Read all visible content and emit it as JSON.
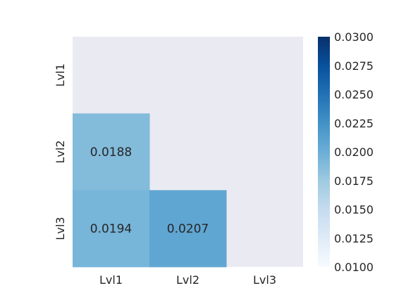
{
  "chart_data": {
    "type": "heatmap",
    "x_categories": [
      "Lvl1",
      "Lvl2",
      "Lvl3"
    ],
    "y_categories": [
      "Lvl1",
      "Lvl2",
      "Lvl3"
    ],
    "values": [
      [
        null,
        null,
        null
      ],
      [
        0.0188,
        null,
        null
      ],
      [
        0.0194,
        0.0207,
        null
      ]
    ],
    "cell_labels": [
      [
        null,
        null,
        null
      ],
      [
        "0.0188",
        null,
        null
      ],
      [
        "0.0194",
        "0.0207",
        null
      ]
    ],
    "mask": "upper triangle including diagonal",
    "colorbar": {
      "range": [
        0.01,
        0.03
      ],
      "tick_labels": [
        "0.0100",
        "0.0125",
        "0.0150",
        "0.0175",
        "0.0200",
        "0.0225",
        "0.0250",
        "0.0275",
        "0.0300"
      ],
      "colormap": "Blues"
    },
    "title": "",
    "xlabel": "",
    "ylabel": "",
    "background_color": "#eaeaf2"
  }
}
